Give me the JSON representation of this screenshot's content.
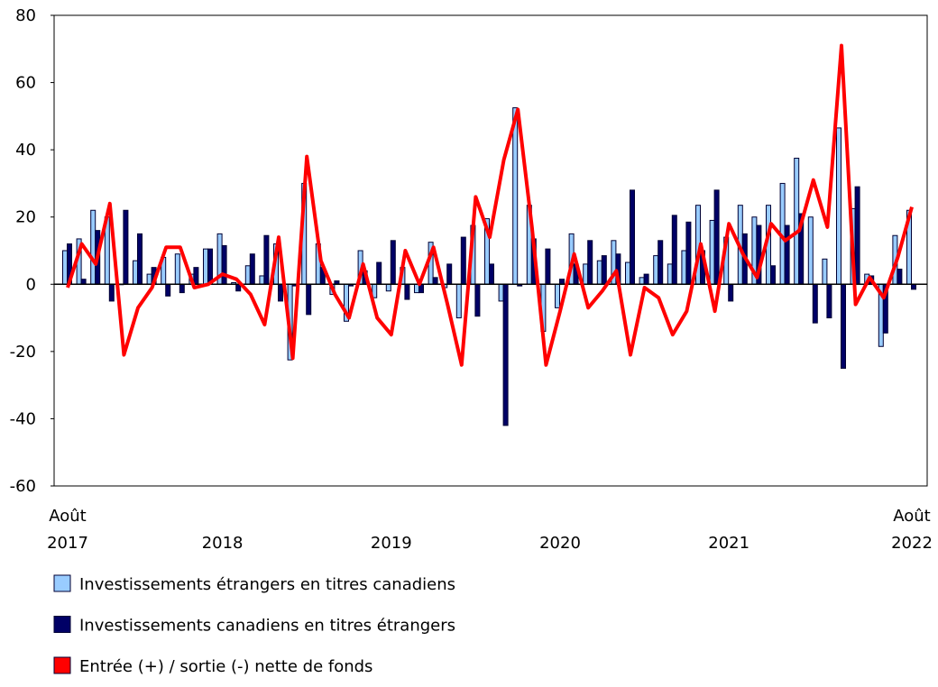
{
  "chart_data": {
    "type": "bar_line",
    "categories": [
      "Août 2017",
      null,
      null,
      null,
      null,
      null,
      null,
      null,
      null,
      null,
      null,
      "2018",
      null,
      null,
      null,
      null,
      null,
      null,
      null,
      null,
      null,
      null,
      null,
      "2019",
      null,
      null,
      null,
      null,
      null,
      null,
      null,
      null,
      null,
      null,
      null,
      "2020",
      null,
      null,
      null,
      null,
      null,
      null,
      null,
      null,
      null,
      null,
      null,
      "2021",
      null,
      null,
      null,
      null,
      null,
      null,
      null,
      null,
      null,
      null,
      null,
      null,
      "Août 2022"
    ],
    "series": [
      {
        "name": "Investissements étrangers en titres canadiens",
        "color": "#99ccff",
        "kind": "bar",
        "values": [
          10,
          13.5,
          22,
          20,
          0,
          7,
          3,
          8,
          9,
          3,
          10.5,
          15,
          0.5,
          5.5,
          2.5,
          12,
          -22.5,
          30,
          12,
          -3,
          -11,
          10,
          -4,
          -2,
          5,
          -2.5,
          12.5,
          -1,
          -10,
          17.5,
          19.5,
          -5,
          52.5,
          23.5,
          -14,
          -7,
          15,
          6,
          7,
          13,
          6.5,
          2,
          8.5,
          6,
          10,
          23.5,
          19,
          14,
          23.5,
          20,
          23.5,
          30,
          37.5,
          20,
          7.5,
          46.5,
          22.5,
          3,
          -18.5,
          14.5,
          22
        ]
      },
      {
        "name": "Investissements canadiens en titres étrangers",
        "color": "#000066",
        "kind": "bar",
        "values": [
          12,
          1.5,
          16,
          -5,
          22,
          15,
          5,
          -3.5,
          -2.5,
          5,
          10.5,
          11.5,
          -2,
          9,
          14.5,
          -5,
          -0.5,
          -9,
          5,
          1,
          -0.5,
          4,
          6.5,
          13,
          -4.5,
          -2.5,
          2,
          6,
          14,
          -9.5,
          6,
          -42,
          -0.5,
          13.5,
          10.5,
          1.5,
          6,
          13,
          8.5,
          9,
          28,
          3,
          13,
          20.5,
          18.5,
          10,
          28,
          -5,
          15,
          17.5,
          5.5,
          17.5,
          21,
          -11.5,
          -10,
          -25,
          29,
          2.5,
          -14.5,
          4.5,
          -1.5
        ]
      },
      {
        "name": "Entrée (+) / sortie (-) nette de fonds",
        "color": "#ff0000",
        "kind": "line",
        "values": [
          -1,
          12,
          6,
          24,
          -21,
          -7,
          -1,
          11,
          11,
          -1,
          0,
          3,
          1.5,
          -3,
          -12,
          14,
          -22,
          38,
          7,
          -3,
          -10,
          6,
          -10,
          -15,
          10,
          0,
          11,
          -6,
          -24,
          26,
          14,
          37,
          52,
          17,
          -24,
          -8,
          9,
          -7,
          -2,
          4,
          -21,
          -1,
          -4,
          -15,
          -8,
          12,
          -8,
          18,
          9,
          2,
          18,
          13,
          16,
          31,
          17,
          71,
          -6,
          2,
          -4,
          8,
          23
        ]
      }
    ],
    "ylim": [
      -60,
      80
    ],
    "yticks": [
      -60,
      -40,
      -20,
      0,
      20,
      40,
      60,
      80
    ],
    "grid": false
  }
}
